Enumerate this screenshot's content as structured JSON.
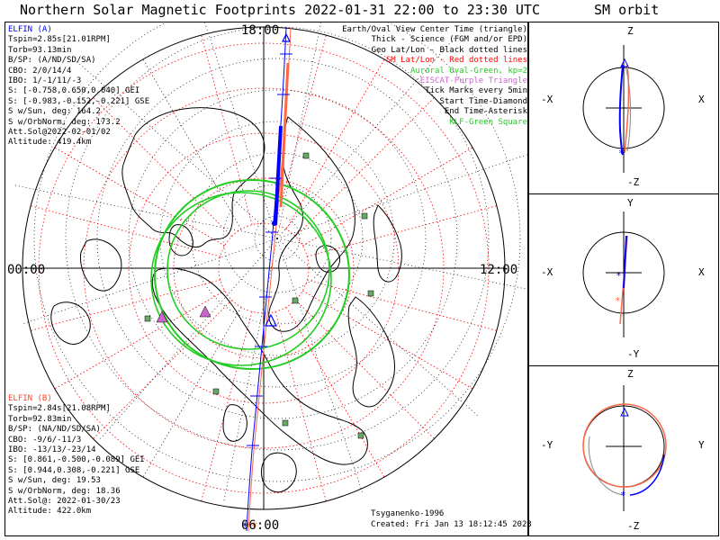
{
  "title": "Northern Solar Magnetic Footprints 2022-01-31 22:00 to 23:30 UTC",
  "orbit_title": "SM orbit",
  "hour_labels": {
    "top": "18:00",
    "left": "00:00",
    "right": "12:00",
    "bottom": "06:00"
  },
  "elfin_a": {
    "header": "ELFIN (A)",
    "lines": [
      "Tspin=2.85s[21.01RPM]",
      "Torb=93.13min",
      "B/SP: (A/ND/SD/SA)",
      "CBO: 2/0/14/4",
      "IBO: 1/-1/11/-3",
      "S: [-0.758,0.650,0.040] GEI",
      "S: [-0.983,-0.152,-0.221] GSE",
      "S w/Sun, deg: 164.2",
      "S w/OrbNorm, deg: 173.2",
      "Att.Sol@2022-02-01/02",
      "Altitude: 419.4km"
    ]
  },
  "elfin_b": {
    "header": "ELFIN (B)",
    "lines": [
      "Tspin=2.84s[21.08RPM]",
      "Torb=92.83min",
      "B/SP: (NA/ND/SD/SA)",
      "CBO: -9/6/-11/3",
      "IBO: -13/13/-23/14",
      "S: [0.861,-0.500,-0.089] GEI",
      "S: [0.944,0.308,-0.221] GSE",
      "S w/Sun, deg: 19.53",
      "S w/OrbNorm, deg: 18.36",
      "Att.Sol@: 2022-01-30/23",
      "Altitude: 422.0km"
    ]
  },
  "legend": [
    {
      "text": "Earth/Oval View Center Time (triangle)",
      "color": "#000000"
    },
    {
      "text": "Thick - Science (FGM and/or EPD)",
      "color": "#000000"
    },
    {
      "text": "Geo Lat/Lon - Black dotted lines",
      "color": "#000000"
    },
    {
      "text": "SM Lat/Lon - Red dotted lines",
      "color": "#ff0000"
    },
    {
      "text": "Auroral Oval-Green, kp=2",
      "color": "#22cc22"
    },
    {
      "text": "EISCAT-Purple Triangle",
      "color": "#cc66cc"
    },
    {
      "text": "Tick Marks every 5min",
      "color": "#000000"
    },
    {
      "text": "Start Time-Diamond",
      "color": "#000000"
    },
    {
      "text": "End Time-Asterisk",
      "color": "#000000"
    },
    {
      "text": "KLF-Green Square",
      "color": "#22cc22"
    }
  ],
  "credit_model": "Tsyganenko-1996",
  "credit_created": "Created: Fri Jan 13 18:12:45 2023",
  "orbit_panels": [
    {
      "top": "Z",
      "bottom": "-Z",
      "left": "-X",
      "right": "X"
    },
    {
      "top": "Y",
      "bottom": "-Y",
      "left": "-X",
      "right": "X"
    },
    {
      "top": "Z",
      "bottom": "-Z",
      "left": "-Y",
      "right": "Y"
    }
  ],
  "colors": {
    "elfin_a": "#0000ff",
    "elfin_b": "#ff6644",
    "sm_grid": "#ff0000",
    "oval": "#22cc22",
    "eiscat": "#cc66cc"
  }
}
